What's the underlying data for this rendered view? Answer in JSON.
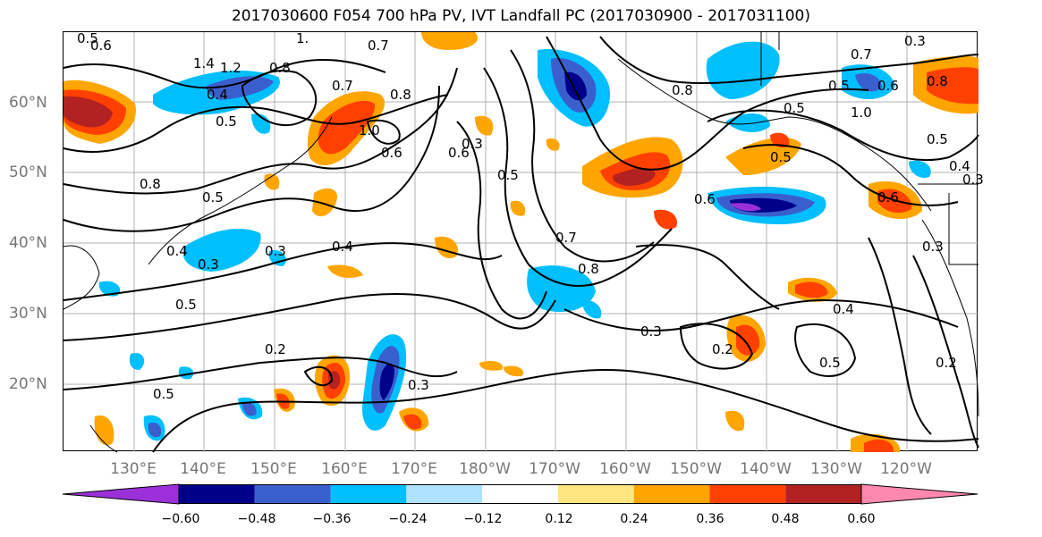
{
  "title": "2017030600 F054 700 hPa PV, IVT Landfall PC (2017030900 - 2017031100)",
  "lat_labels": [
    "60°N",
    "50°N",
    "40°N",
    "30°N",
    "20°N"
  ],
  "lon_labels": [
    "130°E",
    "140°E",
    "150°E",
    "160°E",
    "170°E",
    "180°W",
    "170°W",
    "160°W",
    "150°W",
    "140°W",
    "130°W",
    "120°W"
  ],
  "colorbar": {
    "ticks": [
      "−0.60",
      "−0.48",
      "−0.36",
      "−0.24",
      "−0.12",
      "0.12",
      "0.24",
      "0.36",
      "0.48",
      "0.60"
    ],
    "colors": [
      "#9b30d9",
      "#00008b",
      "#3a5fcd",
      "#00bfff",
      "#b0e2ff",
      "#ffffff",
      "#ffe680",
      "#ffa500",
      "#ff4000",
      "#b22222",
      "#ff88b0"
    ]
  },
  "contour_labels": [
    "0.6",
    "0.5",
    "1.4",
    "1.2",
    "0.4",
    "0.5",
    "0.8",
    "1.",
    "0.7",
    "0.7",
    "0.8",
    "1.0",
    "0.6",
    "0.6",
    "0.8",
    "0.3",
    "0.5",
    "0.8",
    "0.4",
    "0.7",
    "0.8",
    "0.6",
    "0.5",
    "0.3",
    "0.4",
    "0.5",
    "0.5",
    "0.3",
    "0.2",
    "0.2",
    "0.3",
    "0.3",
    "0.4",
    "0.2",
    "0.5",
    "0.5",
    "0.3",
    "0.6",
    "0.5",
    "1.0",
    "0.8",
    "0.5",
    "0.4",
    "0.6",
    "0.3",
    "0.5",
    "0.3",
    "0.7"
  ]
}
